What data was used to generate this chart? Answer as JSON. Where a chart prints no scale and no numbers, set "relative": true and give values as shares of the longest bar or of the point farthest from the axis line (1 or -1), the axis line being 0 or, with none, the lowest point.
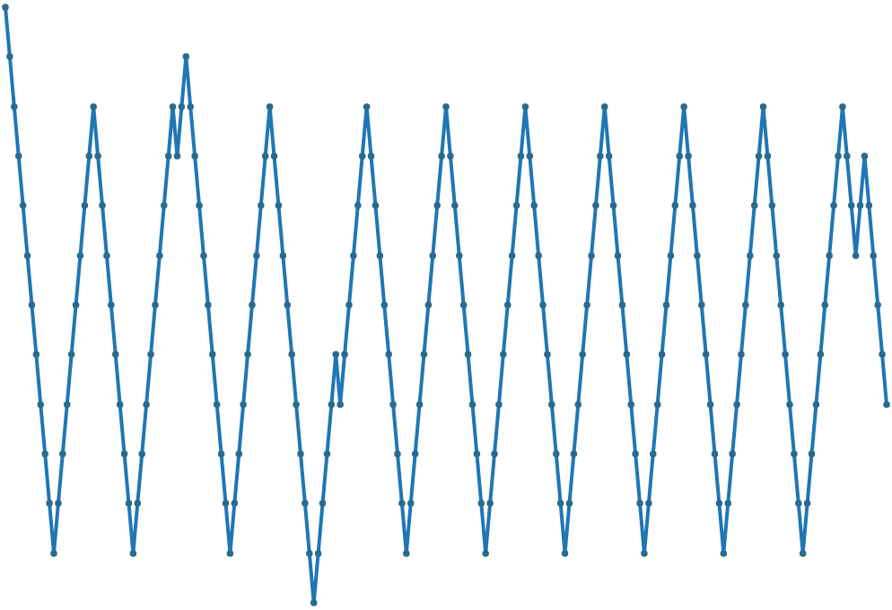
{
  "chart_data": {
    "type": "line",
    "relative": true,
    "tick_labels": false,
    "marker": "circle",
    "line_style": "solid",
    "categories": [
      null,
      null,
      null,
      null,
      null,
      null,
      null,
      null,
      null,
      null,
      null,
      null,
      null,
      null,
      null,
      null,
      null,
      null,
      null,
      null,
      null,
      null,
      null,
      null,
      null,
      null,
      null,
      null,
      null,
      null,
      null,
      null,
      null,
      null,
      null,
      null,
      null,
      null,
      null,
      null,
      null,
      null,
      null,
      null,
      null,
      null,
      null,
      null,
      null,
      null,
      null,
      null,
      null,
      null,
      null,
      null,
      null,
      null,
      null,
      null,
      null,
      null,
      null,
      null,
      null,
      null,
      null,
      null,
      null,
      null,
      null,
      null,
      null,
      null,
      null,
      null,
      null,
      null,
      null,
      null,
      null,
      null,
      null,
      null,
      null,
      null,
      null,
      null,
      null,
      null,
      null,
      null,
      null,
      null,
      null,
      null,
      null,
      null,
      null,
      null,
      null,
      null,
      null,
      null,
      null,
      null,
      null,
      null,
      null,
      null,
      null,
      null,
      null,
      null,
      null,
      null,
      null,
      null,
      null,
      null,
      null,
      null,
      null,
      null,
      null,
      null,
      null,
      null,
      null,
      null,
      null,
      null,
      null,
      null,
      null,
      null,
      null,
      null,
      null,
      null,
      null,
      null,
      null,
      null,
      null,
      null,
      null,
      null,
      null,
      null,
      null,
      null,
      null,
      null,
      null,
      null,
      null,
      null,
      null,
      null,
      null,
      null,
      null,
      null,
      null,
      null,
      null,
      null,
      null,
      null,
      null,
      null,
      null,
      null,
      null,
      null,
      null,
      null,
      null,
      null,
      null,
      null,
      null,
      null,
      null,
      null,
      null,
      null,
      null,
      null,
      null,
      null,
      null,
      null,
      null,
      null,
      null,
      null,
      null,
      null,
      null
    ],
    "series": [
      {
        "color": "#1f77b4",
        "values": [
          1,
          0.917,
          0.833,
          0.75,
          0.667,
          0.583,
          0.5,
          0.417,
          0.333,
          0.25,
          0.167,
          0.083,
          0.167,
          0.25,
          0.333,
          0.417,
          0.5,
          0.583,
          0.667,
          0.75,
          0.833,
          0.75,
          0.667,
          0.583,
          0.5,
          0.417,
          0.333,
          0.25,
          0.167,
          0.083,
          0.167,
          0.25,
          0.333,
          0.417,
          0.5,
          0.583,
          0.667,
          0.75,
          0.833,
          0.75,
          0.833,
          0.917,
          0.833,
          0.75,
          0.667,
          0.583,
          0.5,
          0.417,
          0.333,
          0.25,
          0.167,
          0.083,
          0.167,
          0.25,
          0.333,
          0.417,
          0.5,
          0.583,
          0.667,
          0.75,
          0.833,
          0.75,
          0.667,
          0.583,
          0.5,
          0.417,
          0.333,
          0.25,
          0.167,
          0.083,
          0,
          0.083,
          0.167,
          0.25,
          0.333,
          0.417,
          0.333,
          0.417,
          0.5,
          0.583,
          0.667,
          0.75,
          0.833,
          0.75,
          0.667,
          0.583,
          0.5,
          0.417,
          0.333,
          0.25,
          0.167,
          0.083,
          0.167,
          0.25,
          0.333,
          0.417,
          0.5,
          0.583,
          0.667,
          0.75,
          0.833,
          0.75,
          0.667,
          0.583,
          0.5,
          0.417,
          0.333,
          0.25,
          0.167,
          0.083,
          0.167,
          0.25,
          0.333,
          0.417,
          0.5,
          0.583,
          0.667,
          0.75,
          0.833,
          0.75,
          0.667,
          0.583,
          0.5,
          0.417,
          0.333,
          0.25,
          0.167,
          0.083,
          0.167,
          0.25,
          0.333,
          0.417,
          0.5,
          0.583,
          0.667,
          0.75,
          0.833,
          0.75,
          0.667,
          0.583,
          0.5,
          0.417,
          0.333,
          0.25,
          0.167,
          0.083,
          0.167,
          0.25,
          0.333,
          0.417,
          0.5,
          0.583,
          0.667,
          0.75,
          0.833,
          0.75,
          0.667,
          0.583,
          0.5,
          0.417,
          0.333,
          0.25,
          0.167,
          0.083,
          0.167,
          0.25,
          0.333,
          0.417,
          0.5,
          0.583,
          0.667,
          0.75,
          0.833,
          0.75,
          0.667,
          0.583,
          0.5,
          0.417,
          0.333,
          0.25,
          0.167,
          0.083,
          0.167,
          0.25,
          0.333,
          0.417,
          0.5,
          0.583,
          0.667,
          0.75,
          0.833,
          0.75,
          0.667,
          0.583,
          0.667,
          0.75,
          0.667,
          0.583,
          0.5,
          0.417,
          0.333
        ]
      }
    ]
  }
}
